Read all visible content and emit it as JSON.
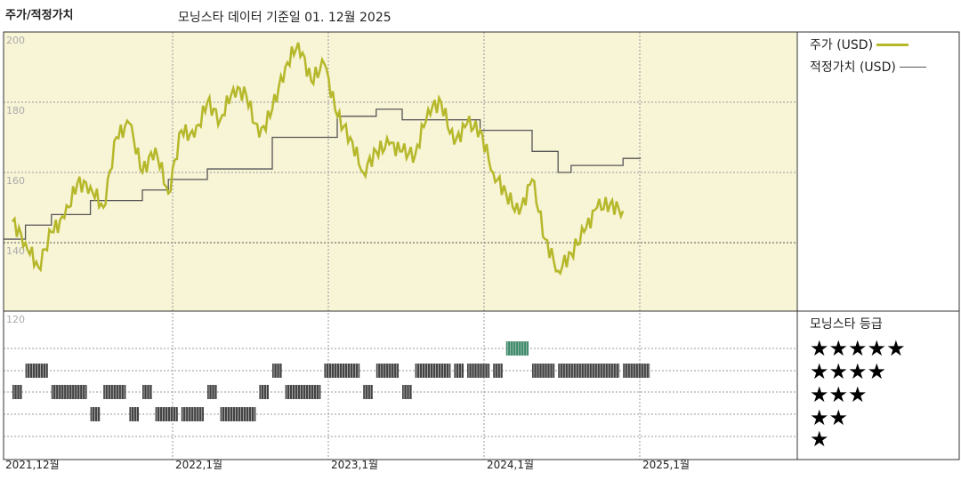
{
  "header": {
    "title": "주가/적정가치",
    "subtitle": "모닝스타 데이터 기준일 01. 12월 2025"
  },
  "legend": {
    "price_label": "주가 (USD)",
    "fair_value_label": "적정가치 (USD)",
    "rating_title": "모닝스타 등급"
  },
  "colors": {
    "price": "#b5b82a",
    "fair_value": "#555555",
    "plot_bg": "#f8f4d6",
    "rating_bar": "#444444",
    "rating_highlight": "#3a8a68"
  },
  "stars": [
    "★★★★★",
    "★★★★",
    "★★★",
    "★★",
    "★"
  ],
  "chart_data": {
    "type": "line",
    "x_ticks": [
      "2021,12월",
      "2022,1월",
      "2023,1월",
      "2024,1월",
      "2025,1월"
    ],
    "y_ticks": [
      "200",
      "180",
      "160",
      "140",
      "120"
    ],
    "ylim": [
      120,
      200
    ],
    "xlim": [
      "2021-12",
      "2025-12"
    ],
    "grid": true,
    "series": [
      {
        "name": "주가 (USD)",
        "x": [
          "2021-12",
          "2022-01",
          "2022-02",
          "2022-03",
          "2022-04",
          "2022-05",
          "2022-06",
          "2022-07",
          "2022-08",
          "2022-09",
          "2022-10",
          "2022-11",
          "2022-12",
          "2023-01",
          "2023-02",
          "2023-03",
          "2023-04",
          "2023-05",
          "2023-06",
          "2023-07",
          "2023-08",
          "2023-09",
          "2023-10",
          "2023-11",
          "2023-12",
          "2024-01",
          "2024-02",
          "2024-03",
          "2024-04",
          "2024-05",
          "2024-06",
          "2024-07",
          "2024-08",
          "2024-09",
          "2024-10",
          "2024-11",
          "2024-12",
          "2025-01",
          "2025-02",
          "2025-03",
          "2025-04",
          "2025-05",
          "2025-06",
          "2025-07",
          "2025-08",
          "2025-09",
          "2025-10",
          "2025-11"
        ],
        "values": [
          146,
          140,
          133,
          143,
          147,
          157,
          156,
          150,
          170,
          174,
          160,
          167,
          154,
          172,
          170,
          180,
          175,
          184,
          182,
          170,
          178,
          190,
          197,
          186,
          191,
          176,
          170,
          160,
          166,
          168,
          166,
          165,
          178,
          180,
          168,
          174,
          172,
          160,
          154,
          148,
          158,
          141,
          132,
          137,
          143,
          150,
          151,
          149
        ]
      },
      {
        "name": "적정가치 (USD)",
        "x": [
          "2021-12",
          "2022-01",
          "2022-03",
          "2022-06",
          "2022-10",
          "2022-12",
          "2023-03",
          "2023-08",
          "2024-01",
          "2024-04",
          "2024-06",
          "2024-12",
          "2025-04",
          "2025-06",
          "2025-07",
          "2025-11"
        ],
        "values": [
          141,
          145,
          148,
          152,
          155,
          158,
          161,
          170,
          176,
          178,
          175,
          172,
          166,
          160,
          162,
          164
        ]
      }
    ]
  },
  "rating_data": {
    "x_periods": [
      "2021-12",
      "2022-01",
      "2022-03",
      "2022-06",
      "2022-07",
      "2022-09",
      "2022-10",
      "2022-11",
      "2023-01",
      "2023-03",
      "2023-04",
      "2023-07",
      "2023-08",
      "2023-09",
      "2023-12",
      "2024-03",
      "2024-04",
      "2024-06",
      "2024-07",
      "2024-10",
      "2024-11",
      "2025-01",
      "2025-02",
      "2025-04",
      "2025-06",
      "2025-11"
    ],
    "stars": [
      3,
      4,
      3,
      2,
      3,
      2,
      3,
      2,
      2,
      3,
      2,
      3,
      4,
      3,
      4,
      3,
      4,
      3,
      4,
      4,
      4,
      4,
      5,
      4,
      4,
      4
    ]
  }
}
